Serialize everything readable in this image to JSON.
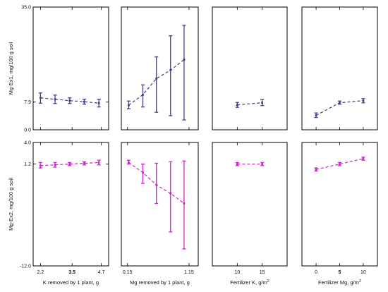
{
  "chart_data": [
    {
      "id": "p11",
      "row": 1,
      "col": 1,
      "type": "line",
      "error_bars": true,
      "color": "#4a3a86",
      "xlabel": "",
      "ylabel": "Mg-Ex1, mg/100 g soil",
      "ylim": [
        0,
        35
      ],
      "yticks": [
        0,
        7.9,
        35
      ],
      "ytick_labels": [
        "0.0",
        "7.9",
        "35.0"
      ],
      "xlim": [
        1.9,
        5.0
      ],
      "xticks": [
        2.2,
        3.5,
        4.7
      ],
      "xtick_labels": [],
      "series": [
        {
          "x": [
            2.2,
            2.8,
            3.4,
            4.0,
            4.6
          ],
          "y": [
            9.1,
            8.7,
            8.3,
            8.0,
            7.6
          ],
          "lo": [
            7.6,
            7.5,
            7.5,
            7.3,
            6.5
          ],
          "hi": [
            10.5,
            9.9,
            9.1,
            8.7,
            8.7
          ]
        }
      ]
    },
    {
      "id": "p12",
      "row": 1,
      "col": 2,
      "type": "line",
      "error_bars": true,
      "color": "#4a3a86",
      "xlabel": "",
      "ylabel": "",
      "ylim": [
        0,
        35
      ],
      "yticks": [],
      "ytick_labels": [],
      "xlim": [
        0.05,
        1.3
      ],
      "xticks": [
        0.15,
        1.15
      ],
      "xtick_labels": [],
      "series": [
        {
          "x": [
            0.17,
            0.4,
            0.62,
            0.85,
            1.07
          ],
          "y": [
            7.0,
            10.0,
            14.6,
            17.0,
            20.0
          ],
          "lo": [
            6.0,
            6.5,
            5.0,
            4.0,
            2.8
          ],
          "hi": [
            8.2,
            12.8,
            20.8,
            26.8,
            29.8
          ]
        }
      ]
    },
    {
      "id": "p13",
      "row": 1,
      "col": 3,
      "type": "line",
      "error_bars": true,
      "color": "#4a3a86",
      "xlabel": "",
      "ylabel": "",
      "ylim": [
        0,
        35
      ],
      "yticks": [],
      "ytick_labels": [],
      "xlim": [
        5,
        20
      ],
      "xticks": [
        10,
        15
      ],
      "xtick_labels": [],
      "series": [
        {
          "x": [
            10,
            15
          ],
          "y": [
            7.1,
            7.7
          ],
          "lo": [
            6.4,
            6.9
          ],
          "hi": [
            7.8,
            8.6
          ]
        }
      ]
    },
    {
      "id": "p14",
      "row": 1,
      "col": 4,
      "type": "line",
      "error_bars": true,
      "color": "#4a3a86",
      "xlabel": "",
      "ylabel": "",
      "ylim": [
        0,
        35
      ],
      "yticks": [],
      "ytick_labels": [],
      "xlim": [
        -3,
        13
      ],
      "xticks": [
        0,
        5,
        10
      ],
      "xtick_labels": [],
      "series": [
        {
          "x": [
            0,
            5,
            10
          ],
          "y": [
            4.1,
            7.7,
            8.3
          ],
          "lo": [
            3.5,
            7.3,
            7.7
          ],
          "hi": [
            4.8,
            8.2,
            8.9
          ]
        }
      ]
    },
    {
      "id": "p21",
      "row": 2,
      "col": 1,
      "type": "line",
      "error_bars": true,
      "color": "#cc22cc",
      "xlabel": "K removed by 1 plant, g",
      "ylabel": "Mg-Ex2, mg/100 g soil",
      "ylim": [
        -12,
        4
      ],
      "yticks": [
        -12,
        1.2,
        4
      ],
      "ytick_labels": [
        "-12.0",
        "1.2",
        "4.0"
      ],
      "xlim": [
        1.9,
        5.0
      ],
      "xticks": [
        2.2,
        3.5,
        4.7
      ],
      "xtick_labels": [
        "2.2",
        "3.5",
        "4.7"
      ],
      "bold_xtick": "3.5",
      "series": [
        {
          "x": [
            2.2,
            2.8,
            3.4,
            4.0,
            4.6
          ],
          "y": [
            1.0,
            1.1,
            1.2,
            1.3,
            1.4
          ],
          "lo": [
            0.7,
            0.8,
            1.0,
            1.1,
            1.1
          ],
          "hi": [
            1.4,
            1.4,
            1.4,
            1.5,
            1.7
          ]
        }
      ]
    },
    {
      "id": "p22",
      "row": 2,
      "col": 2,
      "type": "line",
      "error_bars": true,
      "color": "#cc22cc",
      "xlabel": "Mg removed by 1 plant, g",
      "ylabel": "",
      "ylim": [
        -12,
        4
      ],
      "yticks": [],
      "ytick_labels": [],
      "xlim": [
        0.05,
        1.3
      ],
      "xticks": [
        0.15,
        1.15
      ],
      "xtick_labels": [
        "0.15",
        "1.15"
      ],
      "series": [
        {
          "x": [
            0.17,
            0.4,
            0.62,
            0.85,
            1.07
          ],
          "y": [
            1.4,
            0.1,
            -1.5,
            -2.6,
            -3.9
          ],
          "lo": [
            1.2,
            -1.3,
            -3.9,
            -7.6,
            -9.8
          ],
          "hi": [
            1.7,
            1.2,
            1.3,
            1.5,
            1.6
          ]
        }
      ]
    },
    {
      "id": "p23",
      "row": 2,
      "col": 3,
      "type": "line",
      "error_bars": true,
      "color": "#cc22cc",
      "xlabel": "Fertilizer K, g/m²",
      "ylabel": "",
      "ylim": [
        -12,
        4
      ],
      "yticks": [],
      "ytick_labels": [],
      "xlim": [
        5,
        20
      ],
      "xticks": [
        10,
        15
      ],
      "xtick_labels": [
        "10",
        "15"
      ],
      "series": [
        {
          "x": [
            10,
            15
          ],
          "y": [
            1.2,
            1.2
          ],
          "lo": [
            1.0,
            1.0
          ],
          "hi": [
            1.4,
            1.4
          ]
        }
      ]
    },
    {
      "id": "p24",
      "row": 2,
      "col": 4,
      "type": "line",
      "error_bars": true,
      "color": "#cc22cc",
      "xlabel": "Fertilizer Mg, g/m²",
      "ylabel": "",
      "ylim": [
        -12,
        4
      ],
      "yticks": [],
      "ytick_labels": [],
      "xlim": [
        -3,
        13
      ],
      "xticks": [
        0,
        5,
        10
      ],
      "xtick_labels": [
        "0",
        "5",
        "10"
      ],
      "bold_xtick": "5",
      "series": [
        {
          "x": [
            0,
            5,
            10
          ],
          "y": [
            0.5,
            1.2,
            1.9
          ],
          "lo": [
            0.3,
            1.0,
            1.7
          ],
          "hi": [
            0.7,
            1.4,
            2.1
          ]
        }
      ]
    }
  ]
}
